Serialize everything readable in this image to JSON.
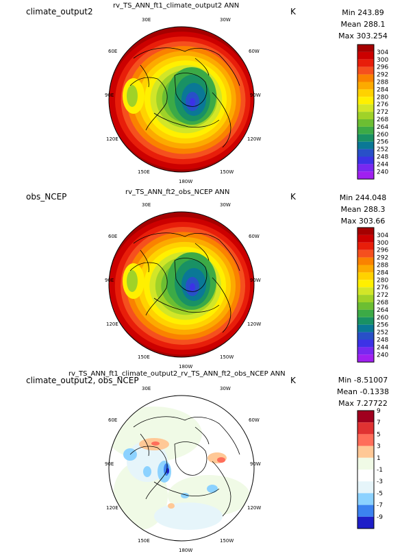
{
  "panels": [
    {
      "id": "test",
      "label": "climate_output2",
      "title": "rv_TS_ANN_ft1_climate_output2  ANN",
      "units": "K",
      "stats": {
        "min": "Min 243.89",
        "mean": "Mean 288.1",
        "max": "Max 303.254"
      },
      "colorbar": {
        "ticks": [
          "304",
          "300",
          "296",
          "292",
          "288",
          "284",
          "280",
          "276",
          "272",
          "268",
          "264",
          "260",
          "256",
          "252",
          "248",
          "244",
          "240"
        ],
        "colors": [
          "#a50000",
          "#cc0000",
          "#e81e0a",
          "#f5501e",
          "#fa8200",
          "#fcaa00",
          "#ffd200",
          "#fff000",
          "#d2e628",
          "#a0d228",
          "#6cbe32",
          "#3caa46",
          "#199164",
          "#0a7896",
          "#2850c8",
          "#3c32e6",
          "#7828f0",
          "#a020f0"
        ]
      }
    },
    {
      "id": "obs",
      "label": "obs_NCEP",
      "title": "rv_TS_ANN_ft2_obs_NCEP  ANN",
      "units": "K",
      "stats": {
        "min": "Min 244.048",
        "mean": "Mean 288.3",
        "max": "Max 303.66"
      },
      "colorbar": {
        "ticks": [
          "304",
          "300",
          "296",
          "292",
          "288",
          "284",
          "280",
          "276",
          "272",
          "268",
          "264",
          "260",
          "256",
          "252",
          "248",
          "244",
          "240"
        ],
        "colors": [
          "#a50000",
          "#cc0000",
          "#e81e0a",
          "#f5501e",
          "#fa8200",
          "#fcaa00",
          "#ffd200",
          "#fff000",
          "#d2e628",
          "#a0d228",
          "#6cbe32",
          "#3caa46",
          "#199164",
          "#0a7896",
          "#2850c8",
          "#3c32e6",
          "#7828f0",
          "#a020f0"
        ]
      }
    },
    {
      "id": "diff",
      "label": "climate_output2, obs_NCEP",
      "title": "rv_TS_ANN_ft1_climate_output2_rv_TS_ANN_ft2_obs_NCEP  ANN",
      "units": "K",
      "stats": {
        "min": "Min -8.51007",
        "mean": "Mean -0.1338",
        "max": "Max 7.27722"
      },
      "colorbar": {
        "ticks": [
          "9",
          "7",
          "5",
          "3",
          "1",
          "-1",
          "-3",
          "-5",
          "-7",
          "-9"
        ],
        "colors": [
          "#a0001e",
          "#e03232",
          "#ff6e5a",
          "#ffc896",
          "#f0fae6",
          "#ffffff",
          "#e6f5fa",
          "#8cd2ff",
          "#3c82f0",
          "#1e1ec8"
        ]
      }
    }
  ],
  "longitude_labels": [
    "30E",
    "30W",
    "60E",
    "60W",
    "90E",
    "90W",
    "120E",
    "120W",
    "150E",
    "150W",
    "180W"
  ],
  "chart_data": [
    {
      "type": "heatmap",
      "projection": "north polar stereographic",
      "variable": "TS ANN",
      "units": "K",
      "levels": [
        240,
        244,
        248,
        252,
        256,
        260,
        264,
        268,
        272,
        276,
        280,
        284,
        288,
        292,
        296,
        300,
        304
      ],
      "min": 243.89,
      "mean": 288.1,
      "max": 303.254
    },
    {
      "type": "heatmap",
      "projection": "north polar stereographic",
      "variable": "TS ANN",
      "units": "K",
      "levels": [
        240,
        244,
        248,
        252,
        256,
        260,
        264,
        268,
        272,
        276,
        280,
        284,
        288,
        292,
        296,
        300,
        304
      ],
      "min": 244.048,
      "mean": 288.3,
      "max": 303.66
    },
    {
      "type": "heatmap",
      "projection": "north polar stereographic",
      "variable": "TS ANN difference",
      "units": "K",
      "levels": [
        -9,
        -7,
        -5,
        -3,
        -1,
        1,
        3,
        5,
        7,
        9
      ],
      "min": -8.51007,
      "mean": -0.1338,
      "max": 7.27722
    }
  ]
}
